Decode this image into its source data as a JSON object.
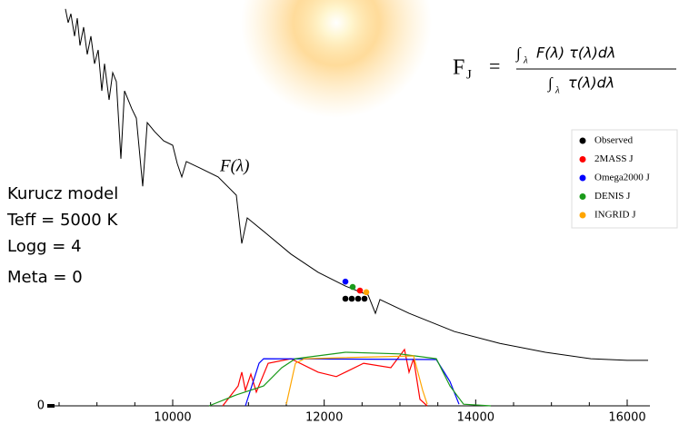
{
  "chart_data": {
    "type": "line",
    "xlim": [
      8380,
      16300
    ],
    "ylim": [
      0,
      100
    ],
    "xticks": [
      10000,
      12000,
      14000,
      16000
    ],
    "xminorticks": [
      8500,
      9000,
      9500,
      10500,
      11000,
      11500,
      12500,
      13000,
      13500,
      14500,
      15000,
      15500
    ],
    "yticks": [
      0
    ],
    "curve_label": "F(λ)",
    "annotations": [
      "Kurucz model",
      "Teff = 5000 K",
      "Logg = 4",
      "Meta = 0"
    ],
    "formula": {
      "symbol": "F",
      "subscript": "J",
      "equals": "=",
      "integral": "∫",
      "integral_sub": "λ",
      "numerator": "F(λ) τ(λ)dλ",
      "denominator": "τ(λ)dλ"
    },
    "spectrum": {
      "color": "#000000",
      "x": [
        8584,
        8620,
        8656,
        8704,
        8740,
        8776,
        8824,
        8872,
        8920,
        8968,
        9016,
        9064,
        9100,
        9160,
        9208,
        9256,
        9316,
        9364,
        9460,
        9520,
        9604,
        9664,
        9760,
        9880,
        10000,
        10060,
        10120,
        10180,
        10360,
        10600,
        10840,
        10912,
        10984,
        11200,
        11560,
        11920,
        12280,
        12580,
        12676,
        12736,
        13120,
        13720,
        14320,
        14920,
        15520,
        16000,
        16276
      ],
      "values": [
        97.8,
        94.4,
        96.6,
        91.1,
        95.5,
        88.8,
        93.3,
        86.6,
        91.1,
        84.3,
        87.7,
        77.6,
        84.3,
        75.4,
        82.1,
        79.9,
        60.9,
        77.6,
        73.2,
        70.9,
        54.1,
        69.8,
        67.6,
        65.3,
        64.2,
        59.7,
        56.4,
        60.2,
        58.6,
        56.4,
        51.9,
        40.0,
        46.3,
        43.0,
        37.4,
        32.9,
        29.5,
        27.3,
        22.8,
        26.2,
        22.8,
        18.3,
        15.4,
        13.2,
        11.6,
        11.2,
        11.2
      ]
    },
    "legend": "upper right",
    "series": [
      {
        "name": "Observed",
        "color": "#000000",
        "x": [
          12280,
          12364,
          12448,
          12532
        ],
        "values": [
          26.4,
          26.4,
          26.4,
          26.4
        ]
      },
      {
        "name": "2MASS J",
        "color": "#ff0000",
        "x": [
          12472
        ],
        "values": [
          28.4
        ],
        "curve_x": [
          10660,
          10864,
          10912,
          10960,
          11032,
          11104,
          11260,
          11560,
          11920,
          12160,
          12520,
          12880,
          13060,
          13120,
          13180,
          13264,
          13360
        ],
        "curve_values": [
          0,
          4.9,
          8.3,
          3.8,
          7.8,
          3.4,
          10.5,
          11.6,
          8.3,
          7.2,
          10.5,
          9.4,
          13.9,
          8.3,
          11.6,
          1.6,
          0
        ]
      },
      {
        "name": "Omega2000 J",
        "color": "#0000ff",
        "x": [
          12280
        ],
        "values": [
          30.6
        ],
        "curve_x": [
          10960,
          11140,
          11200,
          13480,
          13660,
          13780
        ],
        "curve_values": [
          0,
          10.5,
          11.6,
          11.4,
          6.0,
          0.4
        ]
      },
      {
        "name": "DENIS J",
        "color": "#1a9a1a",
        "x": [
          12376
        ],
        "values": [
          29.3
        ],
        "curve_x": [
          10480,
          10840,
          11200,
          11440,
          11620,
          12280,
          13000,
          13480,
          13660,
          13840,
          14200
        ],
        "curve_values": [
          0,
          2.7,
          4.9,
          9.4,
          11.6,
          13.2,
          12.8,
          11.6,
          4.9,
          0.4,
          0
        ]
      },
      {
        "name": "INGRID J",
        "color": "#ffa500",
        "x": [
          12556
        ],
        "values": [
          28.0
        ],
        "curve_x": [
          11500,
          11620,
          11740,
          13180,
          13300,
          13360
        ],
        "curve_values": [
          0.4,
          10.5,
          11.6,
          12.3,
          3.8,
          0.4
        ]
      }
    ]
  }
}
